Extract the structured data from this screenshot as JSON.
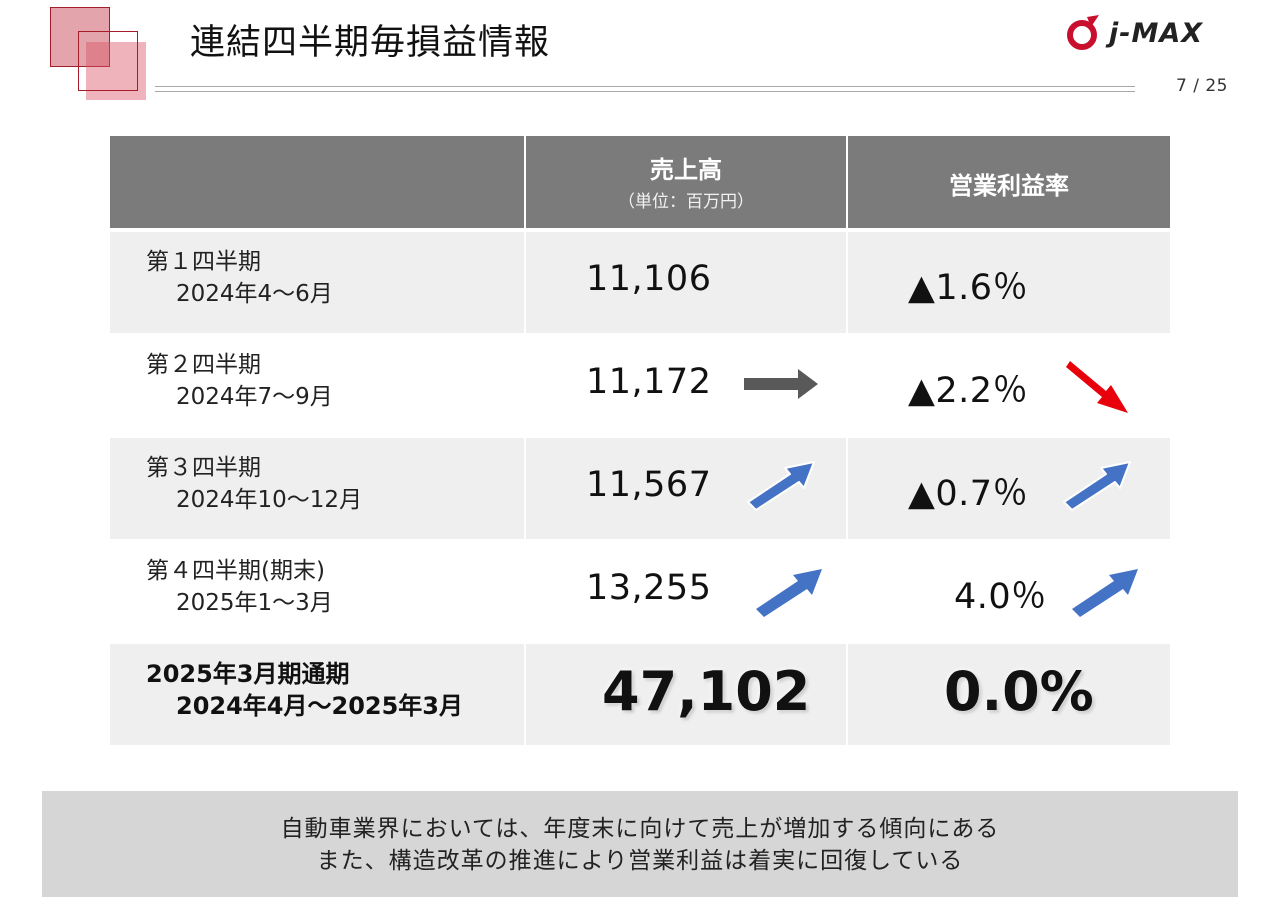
{
  "header": {
    "title": "連結四半期毎損益情報",
    "page_number": "7 / 25",
    "logo_text": "j-MAX",
    "brand_color": "#c8102e"
  },
  "table": {
    "columns": {
      "sales": "売上高",
      "sales_unit": "（単位：百万円）",
      "margin": "営業利益率"
    },
    "rows": [
      {
        "period": "第１四半期",
        "range": "2024年4～6月",
        "sales": "11,106",
        "margin": "▲1.6％",
        "sales_trend": "",
        "margin_trend": ""
      },
      {
        "period": "第２四半期",
        "range": "2024年7～9月",
        "sales": "11,172",
        "margin": "▲2.2％",
        "sales_trend": "flat",
        "margin_trend": "down"
      },
      {
        "period": "第３四半期",
        "range": "2024年10～12月",
        "sales": "11,567",
        "margin": "▲0.7％",
        "sales_trend": "up",
        "margin_trend": "up"
      },
      {
        "period": "第４四半期(期末)",
        "range": "2025年1～3月",
        "sales": "13,255",
        "margin": "4.0％",
        "sales_trend": "up",
        "margin_trend": "up"
      }
    ],
    "total": {
      "period": "2025年3月期通期",
      "range": "2024年4月～2025年3月",
      "sales": "47,102",
      "margin": "0.0%"
    },
    "trend_colors": {
      "flat": "#595959",
      "down": "#e8000b",
      "up": "#4472c4"
    }
  },
  "footer": {
    "line1": "自動車業界においては、年度末に向けて売上が増加する傾向にある",
    "line2": "また、構造改革の推進により営業利益は着実に回復している"
  }
}
